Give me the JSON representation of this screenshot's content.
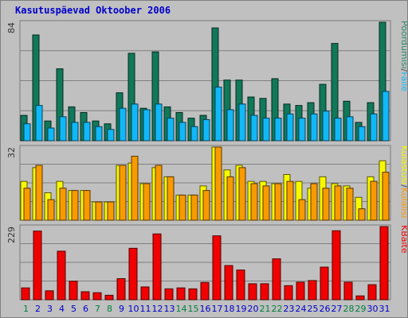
{
  "title": "Kasutuspäevad Oktoober 2006",
  "colors": {
    "pages": "#11785a",
    "files": "#11b8f8",
    "hits": "#f8f800",
    "visits": "#f89a00",
    "bytes": "#f00000",
    "background": "#c0c0c0",
    "gridline": "#808080",
    "title": "#0000cc",
    "weekday_label": "#0000cc",
    "weekend_label": "#008040"
  },
  "chart_data": [
    {
      "type": "bar",
      "panel": "top",
      "y_max_label": "84",
      "ylim": [
        0,
        84
      ],
      "categories": [
        "1",
        "2",
        "3",
        "4",
        "5",
        "6",
        "7",
        "8",
        "9",
        "10",
        "11",
        "12",
        "13",
        "14",
        "15",
        "16",
        "17",
        "18",
        "19",
        "20",
        "21",
        "22",
        "23",
        "24",
        "25",
        "26",
        "27",
        "28",
        "29",
        "30",
        "31"
      ],
      "legend": [
        {
          "label": "Pöördumisi",
          "color_key": "pages"
        },
        {
          "label": "/",
          "color_key": "sep"
        },
        {
          "label": "Faile",
          "color_key": "files"
        }
      ],
      "series": [
        {
          "name": "Pöördumisi",
          "color_key": "pages",
          "values": [
            18,
            75,
            14,
            51,
            24,
            20,
            14,
            12,
            34,
            62,
            23,
            63,
            24,
            20,
            16,
            18,
            80,
            43,
            43,
            31,
            30,
            44,
            26,
            25,
            27,
            40,
            69,
            28,
            13,
            27,
            84
          ]
        },
        {
          "name": "Faile",
          "color_key": "files",
          "values": [
            12,
            25,
            9,
            17,
            13,
            13,
            10,
            8,
            23,
            26,
            22,
            26,
            16,
            13,
            10,
            15,
            38,
            22,
            26,
            18,
            16,
            16,
            19,
            16,
            19,
            21,
            16,
            17,
            10,
            19,
            35
          ]
        }
      ]
    },
    {
      "type": "bar",
      "panel": "middle",
      "y_max_label": "32",
      "ylim": [
        0,
        32
      ],
      "categories": [
        "1",
        "2",
        "3",
        "4",
        "5",
        "6",
        "7",
        "8",
        "9",
        "10",
        "11",
        "12",
        "13",
        "14",
        "15",
        "16",
        "17",
        "18",
        "19",
        "20",
        "21",
        "22",
        "23",
        "24",
        "25",
        "26",
        "27",
        "28",
        "29",
        "30",
        "31"
      ],
      "legend": [
        {
          "label": "Külastusi",
          "color_key": "hits"
        },
        {
          "label": "/",
          "color_key": "sep"
        },
        {
          "label": "Külalisi",
          "color_key": "visits"
        }
      ],
      "series": [
        {
          "name": "Külastusi",
          "color_key": "hits",
          "values": [
            17,
            23,
            12,
            17,
            13,
            13,
            8,
            8,
            24,
            25,
            16,
            23,
            19,
            11,
            11,
            15,
            32,
            22,
            24,
            17,
            17,
            16,
            20,
            17,
            14,
            19,
            16,
            15,
            10,
            19,
            26
          ]
        },
        {
          "name": "Külalisi",
          "color_key": "visits",
          "values": [
            14,
            24,
            9,
            14,
            13,
            13,
            8,
            8,
            24,
            28,
            16,
            24,
            19,
            11,
            11,
            13,
            32,
            19,
            23,
            16,
            15,
            16,
            17,
            9,
            16,
            14,
            15,
            14,
            5,
            17,
            21
          ]
        }
      ]
    },
    {
      "type": "bar",
      "panel": "bottom",
      "y_max_label": "229",
      "ylim": [
        0,
        229
      ],
      "categories": [
        "1",
        "2",
        "3",
        "4",
        "5",
        "6",
        "7",
        "8",
        "9",
        "10",
        "11",
        "12",
        "13",
        "14",
        "15",
        "16",
        "17",
        "18",
        "19",
        "20",
        "21",
        "22",
        "23",
        "24",
        "25",
        "26",
        "27",
        "28",
        "29",
        "30",
        "31"
      ],
      "legend": [
        {
          "label": "KBaite",
          "color_key": "bytes"
        }
      ],
      "series": [
        {
          "name": "KBaite",
          "color_key": "bytes",
          "values": [
            37,
            215,
            28,
            152,
            58,
            25,
            22,
            14,
            66,
            161,
            40,
            206,
            34,
            37,
            34,
            54,
            200,
            107,
            93,
            50,
            50,
            128,
            44,
            55,
            60,
            102,
            216,
            55,
            12,
            47,
            229
          ]
        }
      ]
    }
  ],
  "x_labels": [
    {
      "text": "1",
      "weekend": true
    },
    {
      "text": "2",
      "weekend": false
    },
    {
      "text": "3",
      "weekend": false
    },
    {
      "text": "4",
      "weekend": false
    },
    {
      "text": "5",
      "weekend": false
    },
    {
      "text": "6",
      "weekend": false
    },
    {
      "text": "7",
      "weekend": true
    },
    {
      "text": "8",
      "weekend": true
    },
    {
      "text": "9",
      "weekend": false
    },
    {
      "text": "10",
      "weekend": false
    },
    {
      "text": "11",
      "weekend": false
    },
    {
      "text": "12",
      "weekend": false
    },
    {
      "text": "13",
      "weekend": false
    },
    {
      "text": "14",
      "weekend": true
    },
    {
      "text": "15",
      "weekend": true
    },
    {
      "text": "16",
      "weekend": false
    },
    {
      "text": "17",
      "weekend": false
    },
    {
      "text": "18",
      "weekend": false
    },
    {
      "text": "19",
      "weekend": false
    },
    {
      "text": "20",
      "weekend": false
    },
    {
      "text": "21",
      "weekend": true
    },
    {
      "text": "22",
      "weekend": true
    },
    {
      "text": "23",
      "weekend": false
    },
    {
      "text": "24",
      "weekend": false
    },
    {
      "text": "25",
      "weekend": false
    },
    {
      "text": "26",
      "weekend": false
    },
    {
      "text": "27",
      "weekend": false
    },
    {
      "text": "28",
      "weekend": true
    },
    {
      "text": "29",
      "weekend": true
    },
    {
      "text": "30",
      "weekend": false
    },
    {
      "text": "31",
      "weekend": false
    }
  ]
}
